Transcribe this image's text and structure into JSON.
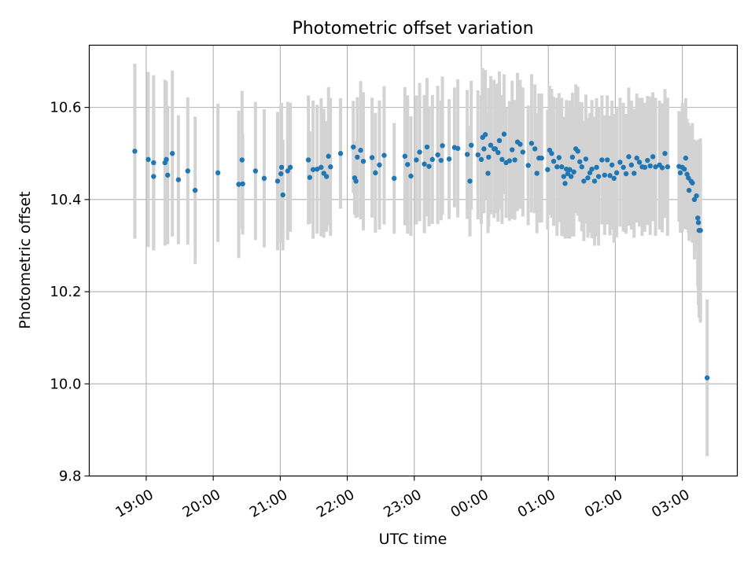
{
  "chart_data": {
    "type": "scatter",
    "title": "Photometric offset variation",
    "xlabel": "UTC time",
    "ylabel": "Photometric offset",
    "x_unit": "hours relative to 00:00 UTC (negative = previous day)",
    "xlim": [
      -5.85,
      3.82
    ],
    "ylim": [
      9.8,
      10.735
    ],
    "grid": true,
    "xticks": [
      {
        "value": -5,
        "label": "19:00"
      },
      {
        "value": -4,
        "label": "20:00"
      },
      {
        "value": -3,
        "label": "21:00"
      },
      {
        "value": -2,
        "label": "22:00"
      },
      {
        "value": -1,
        "label": "23:00"
      },
      {
        "value": 0,
        "label": "00:00"
      },
      {
        "value": 1,
        "label": "01:00"
      },
      {
        "value": 2,
        "label": "02:00"
      },
      {
        "value": 3,
        "label": "03:00"
      }
    ],
    "yticks": [
      {
        "value": 9.8,
        "label": "9.8"
      },
      {
        "value": 10.0,
        "label": "10.0"
      },
      {
        "value": 10.2,
        "label": "10.2"
      },
      {
        "value": 10.4,
        "label": "10.4"
      },
      {
        "value": 10.6,
        "label": "10.6"
      }
    ],
    "colors": {
      "point": "#1f77b4",
      "errorbar": "#d3d3d3",
      "grid": "#b0b0b0"
    },
    "points": [
      [
        -5.17,
        10.505,
        0.19
      ],
      [
        -4.97,
        10.487,
        0.19
      ],
      [
        -4.89,
        10.48,
        0.19
      ],
      [
        -4.89,
        10.45,
        0.16
      ],
      [
        -4.72,
        10.48,
        0.18
      ],
      [
        -4.7,
        10.487,
        0.17
      ],
      [
        -4.68,
        10.453,
        0.15
      ],
      [
        -4.61,
        10.5,
        0.18
      ],
      [
        -4.52,
        10.443,
        0.14
      ],
      [
        -4.38,
        10.462,
        0.16
      ],
      [
        -4.27,
        10.42,
        0.16
      ],
      [
        -3.93,
        10.458,
        0.15
      ],
      [
        -3.62,
        10.433,
        0.16
      ],
      [
        -3.57,
        10.486,
        0.15
      ],
      [
        -3.56,
        10.434,
        0.11
      ],
      [
        -3.37,
        10.462,
        0.15
      ],
      [
        -3.24,
        10.446,
        0.15
      ],
      [
        -3.04,
        10.44,
        0.15
      ],
      [
        -2.99,
        10.456,
        0.15
      ],
      [
        -2.98,
        10.47,
        0.14
      ],
      [
        -2.96,
        10.41,
        0.12
      ],
      [
        -2.89,
        10.462,
        0.15
      ],
      [
        -2.85,
        10.47,
        0.14
      ],
      [
        -2.58,
        10.486,
        0.14
      ],
      [
        -2.56,
        10.448,
        0.1
      ],
      [
        -2.51,
        10.465,
        0.15
      ],
      [
        -2.45,
        10.466,
        0.14
      ],
      [
        -2.39,
        10.47,
        0.15
      ],
      [
        -2.35,
        10.457,
        0.14
      ],
      [
        -2.31,
        10.45,
        0.12
      ],
      [
        -2.28,
        10.494,
        0.15
      ],
      [
        -2.25,
        10.471,
        0.15
      ],
      [
        -2.1,
        10.5,
        0.12
      ],
      [
        -1.91,
        10.514,
        0.1
      ],
      [
        -1.89,
        10.447,
        0.08
      ],
      [
        -1.87,
        10.44,
        0.08
      ],
      [
        -1.85,
        10.492,
        0.13
      ],
      [
        -1.8,
        10.507,
        0.15
      ],
      [
        -1.76,
        10.483,
        0.15
      ],
      [
        -1.63,
        10.491,
        0.13
      ],
      [
        -1.58,
        10.458,
        0.13
      ],
      [
        -1.52,
        10.475,
        0.14
      ],
      [
        -1.45,
        10.496,
        0.15
      ],
      [
        -1.3,
        10.446,
        0.12
      ],
      [
        -1.14,
        10.494,
        0.15
      ],
      [
        -1.1,
        10.476,
        0.15
      ],
      [
        -1.05,
        10.451,
        0.13
      ],
      [
        -0.97,
        10.486,
        0.14
      ],
      [
        -0.92,
        10.503,
        0.15
      ],
      [
        -0.85,
        10.477,
        0.15
      ],
      [
        -0.81,
        10.514,
        0.15
      ],
      [
        -0.78,
        10.472,
        0.13
      ],
      [
        -0.73,
        10.487,
        0.14
      ],
      [
        -0.65,
        10.497,
        0.15
      ],
      [
        -0.6,
        10.485,
        0.13
      ],
      [
        -0.58,
        10.517,
        0.15
      ],
      [
        -0.48,
        10.488,
        0.13
      ],
      [
        -0.35,
        10.511,
        0.15
      ],
      [
        -0.21,
        10.498,
        0.14
      ],
      [
        -0.17,
        10.44,
        0.12
      ],
      [
        -0.15,
        10.518,
        0.14
      ],
      [
        -0.05,
        10.497,
        0.14
      ],
      [
        -0.4,
        10.513,
        0.13
      ],
      [
        0.37,
        10.48,
        0.12
      ],
      [
        0.31,
        10.487,
        0.14
      ],
      [
        0.25,
        10.502,
        0.15
      ],
      [
        0.19,
        10.51,
        0.15
      ],
      [
        0.1,
        10.457,
        0.13
      ],
      [
        0.04,
        10.51,
        0.14
      ],
      [
        0.0,
        10.487,
        0.14
      ],
      [
        0.02,
        10.535,
        0.15
      ],
      [
        0.06,
        10.541,
        0.14
      ],
      [
        0.11,
        10.492,
        0.15
      ],
      [
        0.14,
        10.518,
        0.15
      ],
      [
        0.21,
        10.51,
        0.14
      ],
      [
        0.27,
        10.528,
        0.15
      ],
      [
        0.34,
        10.542,
        0.13
      ],
      [
        0.42,
        10.484,
        0.13
      ],
      [
        0.46,
        10.508,
        0.15
      ],
      [
        0.5,
        10.486,
        0.13
      ],
      [
        0.54,
        10.525,
        0.15
      ],
      [
        0.58,
        10.52,
        0.14
      ],
      [
        0.62,
        10.503,
        0.14
      ],
      [
        0.7,
        10.474,
        0.13
      ],
      [
        0.75,
        10.522,
        0.15
      ],
      [
        0.8,
        10.51,
        0.14
      ],
      [
        0.83,
        10.457,
        0.13
      ],
      [
        0.86,
        10.49,
        0.14
      ],
      [
        0.9,
        10.49,
        0.14
      ],
      [
        0.99,
        10.465,
        0.13
      ],
      [
        1.02,
        10.507,
        0.14
      ],
      [
        1.05,
        10.5,
        0.14
      ],
      [
        1.08,
        10.483,
        0.14
      ],
      [
        1.13,
        10.471,
        0.15
      ],
      [
        1.16,
        10.491,
        0.14
      ],
      [
        1.2,
        10.471,
        0.15
      ],
      [
        1.23,
        10.45,
        0.13
      ],
      [
        1.25,
        10.435,
        0.12
      ],
      [
        1.27,
        10.466,
        0.15
      ],
      [
        1.29,
        10.456,
        0.14
      ],
      [
        1.32,
        10.465,
        0.15
      ],
      [
        1.34,
        10.45,
        0.13
      ],
      [
        1.36,
        10.492,
        0.14
      ],
      [
        1.38,
        10.46,
        0.14
      ],
      [
        1.41,
        10.51,
        0.14
      ],
      [
        1.44,
        10.505,
        0.14
      ],
      [
        1.47,
        10.482,
        0.13
      ],
      [
        1.5,
        10.471,
        0.14
      ],
      [
        1.53,
        10.44,
        0.13
      ],
      [
        1.56,
        10.488,
        0.14
      ],
      [
        1.59,
        10.447,
        0.13
      ],
      [
        1.62,
        10.458,
        0.13
      ],
      [
        1.65,
        10.466,
        0.15
      ],
      [
        1.69,
        10.44,
        0.14
      ],
      [
        1.72,
        10.47,
        0.15
      ],
      [
        1.75,
        10.45,
        0.15
      ],
      [
        1.8,
        10.486,
        0.14
      ],
      [
        1.84,
        10.453,
        0.13
      ],
      [
        1.88,
        10.486,
        0.14
      ],
      [
        1.92,
        10.452,
        0.13
      ],
      [
        1.95,
        10.475,
        0.14
      ],
      [
        1.98,
        10.446,
        0.14
      ],
      [
        2.02,
        10.458,
        0.14
      ],
      [
        2.07,
        10.481,
        0.14
      ],
      [
        2.12,
        10.47,
        0.14
      ],
      [
        2.16,
        10.456,
        0.13
      ],
      [
        2.2,
        10.493,
        0.15
      ],
      [
        2.24,
        10.475,
        0.14
      ],
      [
        2.28,
        10.457,
        0.14
      ],
      [
        2.32,
        10.49,
        0.14
      ],
      [
        2.36,
        10.481,
        0.14
      ],
      [
        2.4,
        10.471,
        0.15
      ],
      [
        2.44,
        10.47,
        0.14
      ],
      [
        2.48,
        10.485,
        0.14
      ],
      [
        2.52,
        10.473,
        0.15
      ],
      [
        2.56,
        10.493,
        0.14
      ],
      [
        2.6,
        10.471,
        0.15
      ],
      [
        2.66,
        10.475,
        0.14
      ],
      [
        2.7,
        10.469,
        0.14
      ],
      [
        2.74,
        10.5,
        0.14
      ],
      [
        2.78,
        10.471,
        0.15
      ],
      [
        2.95,
        10.472,
        0.12
      ],
      [
        2.97,
        10.458,
        0.13
      ],
      [
        3.0,
        10.47,
        0.14
      ],
      [
        3.03,
        10.466,
        0.13
      ],
      [
        3.05,
        10.49,
        0.13
      ],
      [
        3.07,
        10.455,
        0.12
      ],
      [
        3.09,
        10.447,
        0.12
      ],
      [
        3.1,
        10.42,
        0.11
      ],
      [
        3.13,
        10.44,
        0.12
      ],
      [
        3.15,
        10.436,
        0.13
      ],
      [
        3.18,
        10.4,
        0.13
      ],
      [
        3.21,
        10.408,
        0.12
      ],
      [
        3.23,
        10.36,
        0.15
      ],
      [
        3.24,
        10.35,
        0.18
      ],
      [
        3.25,
        10.333,
        0.19
      ],
      [
        3.27,
        10.333,
        0.2
      ],
      [
        3.37,
        10.013,
        0.17
      ]
    ]
  }
}
